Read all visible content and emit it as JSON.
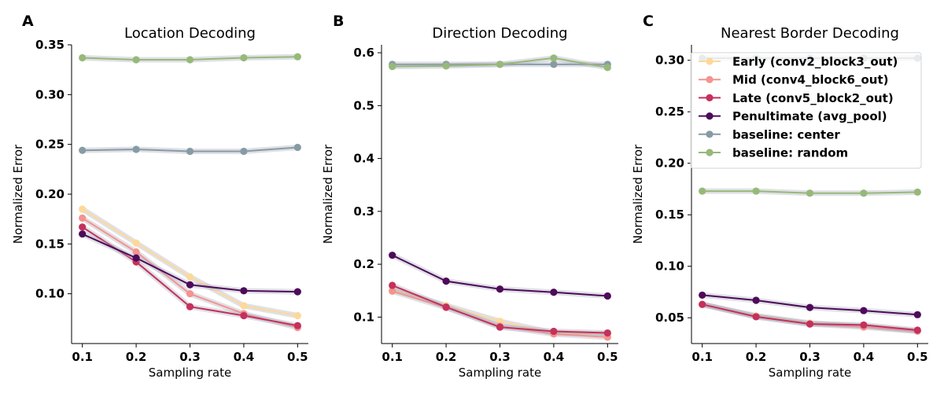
{
  "chart_data": [
    {
      "type": "line",
      "panel_letter": "A",
      "title": "Location Decoding",
      "xlabel": "Sampling rate",
      "ylabel": "Normalized Error",
      "x": [
        0.1,
        0.2,
        0.3,
        0.4,
        0.5
      ],
      "x_ticks": [
        "0.1",
        "0.2",
        "0.3",
        "0.4",
        "0.5"
      ],
      "ylim": [
        0.05,
        0.35
      ],
      "y_ticks": [
        0.1,
        0.15,
        0.2,
        0.25,
        0.3,
        0.35
      ],
      "y_tick_labels": [
        "0.10",
        "0.15",
        "0.20",
        "0.25",
        "0.30",
        "0.35"
      ],
      "grid": false,
      "series": [
        {
          "name": "Early (conv2_block3_out)",
          "color": "#fcd99a",
          "values": [
            0.185,
            0.151,
            0.117,
            0.088,
            0.078
          ]
        },
        {
          "name": "Mid (conv4_block6_out)",
          "color": "#f4938f",
          "values": [
            0.176,
            0.142,
            0.1,
            0.08,
            0.066
          ]
        },
        {
          "name": "Late (conv5_block2_out)",
          "color": "#c5305d",
          "values": [
            0.167,
            0.132,
            0.087,
            0.078,
            0.068
          ]
        },
        {
          "name": "Penultimate (avg_pool)",
          "color": "#4d0b5a",
          "values": [
            0.16,
            0.136,
            0.109,
            0.103,
            0.102
          ]
        },
        {
          "name": "baseline: center",
          "color": "#879ba5",
          "values": [
            0.244,
            0.245,
            0.243,
            0.243,
            0.247
          ]
        },
        {
          "name": "baseline: random",
          "color": "#96b97a",
          "values": [
            0.337,
            0.335,
            0.335,
            0.337,
            0.338
          ]
        }
      ]
    },
    {
      "type": "line",
      "panel_letter": "B",
      "title": "Direction Decoding",
      "xlabel": "Sampling rate",
      "ylabel": "Normalized Error",
      "x": [
        0.1,
        0.2,
        0.3,
        0.4,
        0.5
      ],
      "x_ticks": [
        "0.1",
        "0.2",
        "0.3",
        "0.4",
        "0.5"
      ],
      "ylim": [
        0.05,
        0.615
      ],
      "y_ticks": [
        0.1,
        0.2,
        0.3,
        0.4,
        0.5,
        0.6
      ],
      "y_tick_labels": [
        "0.1",
        "0.2",
        "0.3",
        "0.4",
        "0.5",
        "0.6"
      ],
      "grid": false,
      "series": [
        {
          "name": "Early (conv2_block3_out)",
          "color": "#fcd99a",
          "values": [
            0.152,
            0.122,
            0.092,
            0.07,
            0.068
          ]
        },
        {
          "name": "Mid (conv4_block6_out)",
          "color": "#f4938f",
          "values": [
            0.149,
            0.118,
            0.083,
            0.068,
            0.062
          ]
        },
        {
          "name": "Late (conv5_block2_out)",
          "color": "#c5305d",
          "values": [
            0.16,
            0.119,
            0.081,
            0.073,
            0.07
          ]
        },
        {
          "name": "Penultimate (avg_pool)",
          "color": "#4d0b5a",
          "values": [
            0.217,
            0.168,
            0.153,
            0.147,
            0.14
          ]
        },
        {
          "name": "baseline: center",
          "color": "#879ba5",
          "values": [
            0.578,
            0.578,
            0.578,
            0.578,
            0.578
          ]
        },
        {
          "name": "baseline: random",
          "color": "#96b97a",
          "values": [
            0.574,
            0.575,
            0.578,
            0.59,
            0.572
          ]
        }
      ]
    },
    {
      "type": "line",
      "panel_letter": "C",
      "title": "Nearest Border Decoding",
      "xlabel": "Sampling rate",
      "ylabel": "Normalized Error",
      "x": [
        0.1,
        0.2,
        0.3,
        0.4,
        0.5
      ],
      "x_ticks": [
        "0.1",
        "0.2",
        "0.3",
        "0.4",
        "0.5"
      ],
      "ylim": [
        0.025,
        0.315
      ],
      "y_ticks": [
        0.05,
        0.1,
        0.15,
        0.2,
        0.25,
        0.3
      ],
      "y_tick_labels": [
        "0.05",
        "0.10",
        "0.15",
        "0.20",
        "0.25",
        "0.30"
      ],
      "grid": false,
      "legend_position": "upper-right",
      "series": [
        {
          "name": "Early (conv2_block3_out)",
          "color": "#fcd99a",
          "values": [
            0.063,
            0.052,
            0.045,
            0.042,
            0.037
          ]
        },
        {
          "name": "Mid (conv4_block6_out)",
          "color": "#f4938f",
          "values": [
            0.063,
            0.051,
            0.044,
            0.041,
            0.037
          ]
        },
        {
          "name": "Late (conv5_block2_out)",
          "color": "#c5305d",
          "values": [
            0.063,
            0.051,
            0.044,
            0.043,
            0.038
          ]
        },
        {
          "name": "Penultimate (avg_pool)",
          "color": "#4d0b5a",
          "values": [
            0.072,
            0.067,
            0.06,
            0.057,
            0.053
          ]
        },
        {
          "name": "baseline: center",
          "color": "#879ba5",
          "values": [
            0.302,
            0.302,
            0.302,
            0.302,
            0.302
          ]
        },
        {
          "name": "baseline: random",
          "color": "#96b97a",
          "values": [
            0.173,
            0.173,
            0.171,
            0.171,
            0.172
          ]
        }
      ]
    }
  ],
  "legend": [
    {
      "label": "Early (conv2_block3_out)",
      "color": "#fcd99a"
    },
    {
      "label": "Mid (conv4_block6_out)",
      "color": "#f4938f"
    },
    {
      "label": "Late (conv5_block2_out)",
      "color": "#c5305d"
    },
    {
      "label": "Penultimate (avg_pool)",
      "color": "#4d0b5a"
    },
    {
      "label": "baseline: center",
      "color": "#879ba5"
    },
    {
      "label": "baseline: random",
      "color": "#96b97a"
    }
  ]
}
